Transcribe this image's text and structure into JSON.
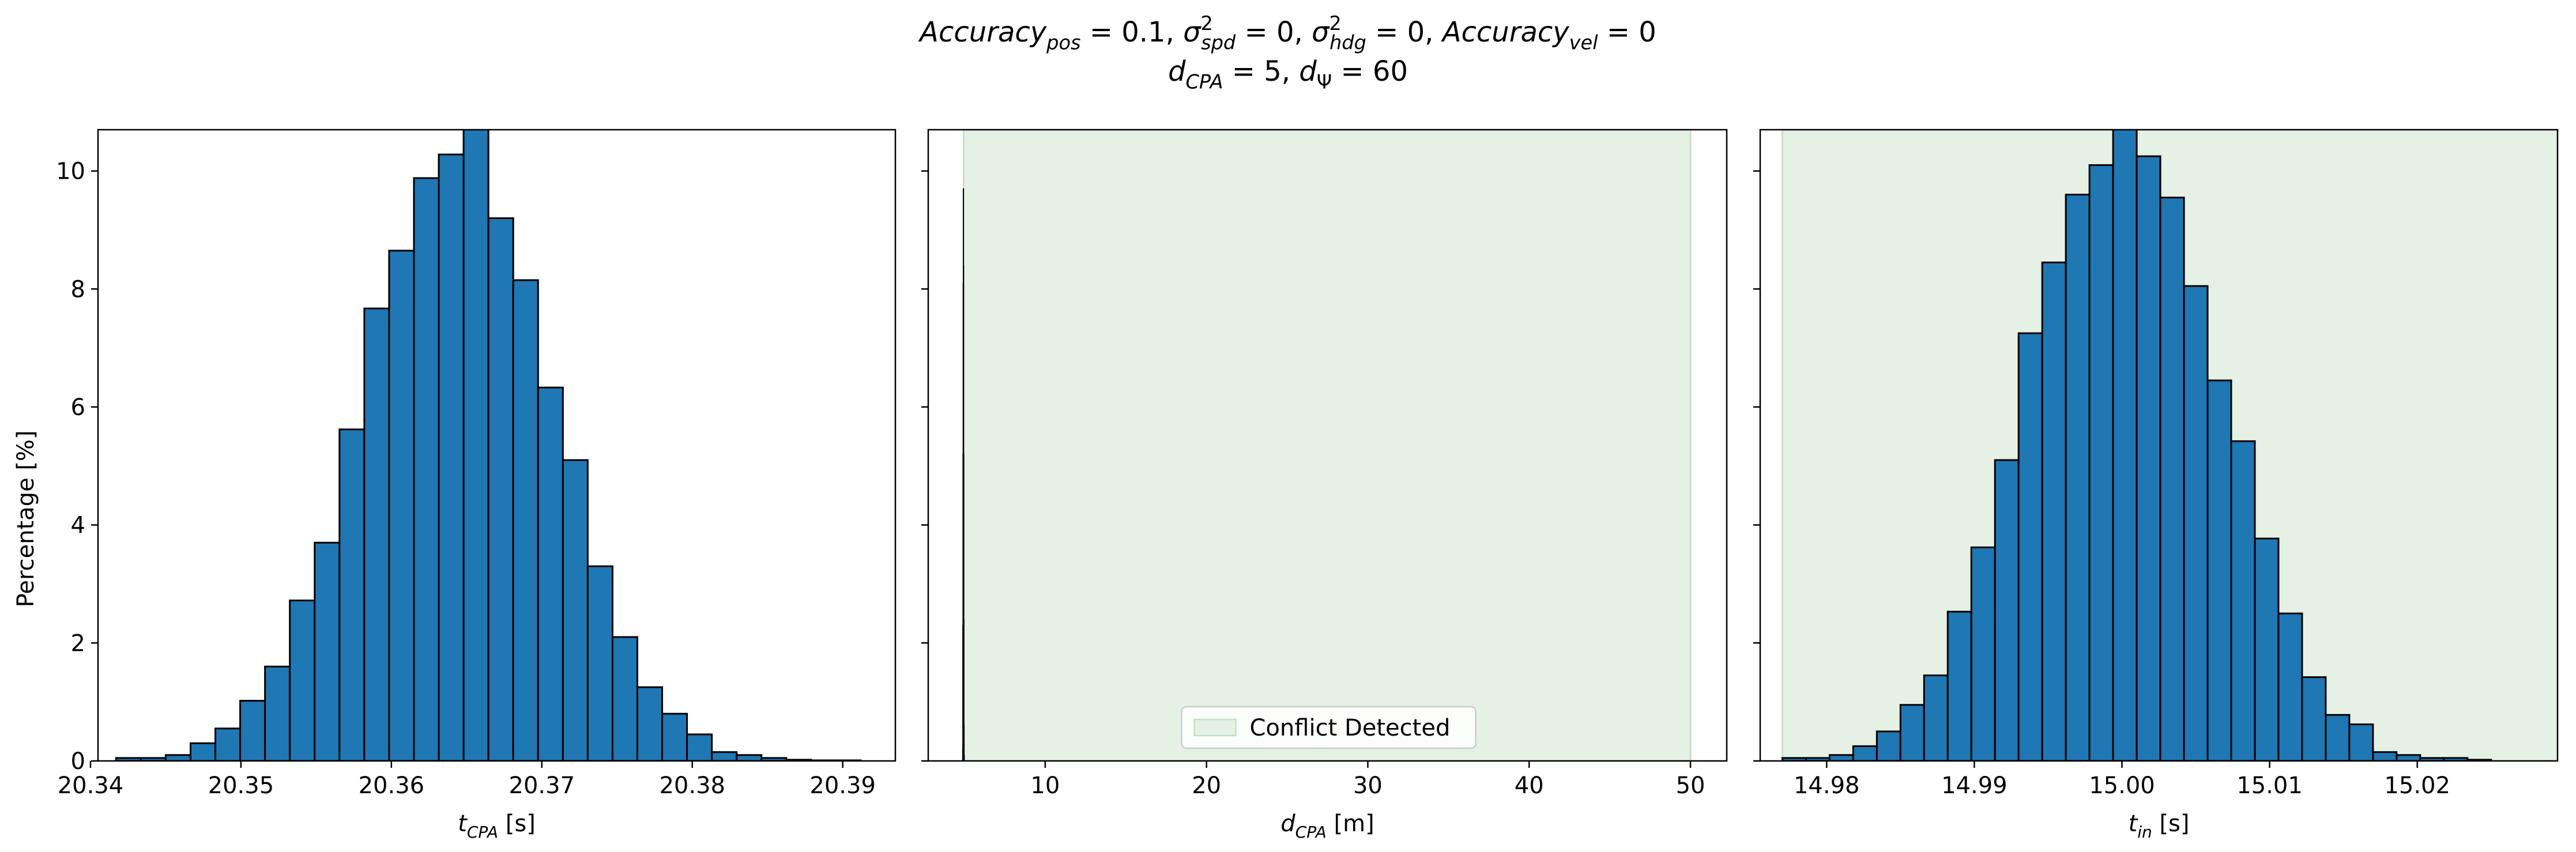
{
  "figure": {
    "title_line1": {
      "parts": [
        {
          "t": "Accuracy",
          "style": "italic"
        },
        {
          "t": "pos",
          "style": "italic-sub"
        },
        {
          "t": " = 0.1, ",
          "style": "normal"
        },
        {
          "t": "σ",
          "style": "italic"
        },
        {
          "t": "2",
          "style": "sup"
        },
        {
          "t": "spd",
          "style": "italic-sub"
        },
        {
          "t": " = 0, ",
          "style": "normal"
        },
        {
          "t": "σ",
          "style": "italic"
        },
        {
          "t": "2",
          "style": "sup"
        },
        {
          "t": "hdg",
          "style": "italic-sub"
        },
        {
          "t": " = 0, ",
          "style": "normal"
        },
        {
          "t": "Accuracy",
          "style": "italic"
        },
        {
          "t": "vel",
          "style": "italic-sub"
        },
        {
          "t": " = 0",
          "style": "normal"
        }
      ]
    },
    "title_line2": {
      "parts": [
        {
          "t": "d",
          "style": "italic"
        },
        {
          "t": "CPA",
          "style": "italic-sub"
        },
        {
          "t": " = 5, ",
          "style": "normal"
        },
        {
          "t": "d",
          "style": "italic"
        },
        {
          "t": "Ψ",
          "style": "sub"
        },
        {
          "t": " = 60",
          "style": "normal"
        }
      ]
    },
    "ylabel": "Percentage [%]",
    "colors": {
      "bar_fill": "#1f77b4",
      "bar_edge": "#000000",
      "shade_fill": "#e5f1e5",
      "shade_edge": "#c4e1c4"
    }
  },
  "chart_data": [
    {
      "type": "bar",
      "xlabel": {
        "parts": [
          {
            "t": "t",
            "style": "italic"
          },
          {
            "t": "CPA",
            "style": "italic-sub"
          },
          {
            "t": " [s]",
            "style": "normal"
          }
        ]
      },
      "ylabel": "Percentage [%]",
      "xlim": [
        20.3405,
        20.3935
      ],
      "ylim": [
        0,
        10.7
      ],
      "xticks": [
        20.34,
        20.35,
        20.36,
        20.37,
        20.38,
        20.39
      ],
      "xtick_labels": [
        "20.34",
        "20.35",
        "20.36",
        "20.37",
        "20.38",
        "20.39"
      ],
      "yticks": [
        0,
        2,
        4,
        6,
        8,
        10
      ],
      "ytick_labels": [
        "0",
        "2",
        "4",
        "6",
        "8",
        "10"
      ],
      "bin_start": 20.3417,
      "bin_width": 0.00165,
      "values": [
        0.05,
        0.05,
        0.1,
        0.3,
        0.55,
        1.02,
        1.6,
        2.72,
        3.7,
        5.62,
        7.67,
        8.65,
        9.88,
        10.28,
        10.72,
        9.2,
        8.15,
        6.33,
        5.1,
        3.3,
        2.1,
        1.25,
        0.8,
        0.45,
        0.15,
        0.1,
        0.05,
        0.02,
        0.01,
        0.01
      ]
    },
    {
      "type": "bar",
      "xlabel": {
        "parts": [
          {
            "t": "d",
            "style": "italic"
          },
          {
            "t": "CPA",
            "style": "italic-sub"
          },
          {
            "t": " [m]",
            "style": "normal"
          }
        ]
      },
      "xlim": [
        2.75,
        52.25
      ],
      "ylim": [
        0,
        10.7
      ],
      "xticks": [
        10,
        20,
        30,
        40,
        50
      ],
      "xtick_labels": [
        "10",
        "20",
        "30",
        "40",
        "50"
      ],
      "yticks": [
        0,
        2,
        4,
        6,
        8,
        10
      ],
      "shade": {
        "x0": 4.95,
        "x1": 50,
        "label": "Conflict Detected"
      },
      "legend_position": "lower center",
      "bin_start": 4.88,
      "bin_width": 0.01,
      "values": [
        0.2,
        2.3,
        5.2,
        8.1,
        9.7,
        8.4,
        5.2,
        2.4,
        0.6,
        0.1
      ]
    },
    {
      "type": "bar",
      "xlabel": {
        "parts": [
          {
            "t": "t",
            "style": "italic"
          },
          {
            "t": "in",
            "style": "italic-sub"
          },
          {
            "t": " [s]",
            "style": "normal"
          }
        ]
      },
      "xlim": [
        14.9755,
        15.0295
      ],
      "ylim": [
        0,
        10.7
      ],
      "xticks": [
        14.98,
        14.99,
        15.0,
        15.01,
        15.02
      ],
      "xtick_labels": [
        "14.98",
        "14.99",
        "15.00",
        "15.01",
        "15.02"
      ],
      "yticks": [
        0,
        2,
        4,
        6,
        8,
        10
      ],
      "shade": {
        "x0": 14.977,
        "x1": 15.0295
      },
      "bin_start": 14.977,
      "bin_width": 0.0016,
      "values": [
        0.05,
        0.05,
        0.1,
        0.25,
        0.5,
        0.95,
        1.45,
        2.53,
        3.62,
        5.1,
        7.25,
        8.45,
        9.6,
        10.1,
        10.8,
        10.25,
        9.55,
        8.05,
        6.45,
        5.42,
        3.77,
        2.5,
        1.42,
        0.78,
        0.62,
        0.15,
        0.1,
        0.05,
        0.05,
        0.02
      ]
    }
  ]
}
